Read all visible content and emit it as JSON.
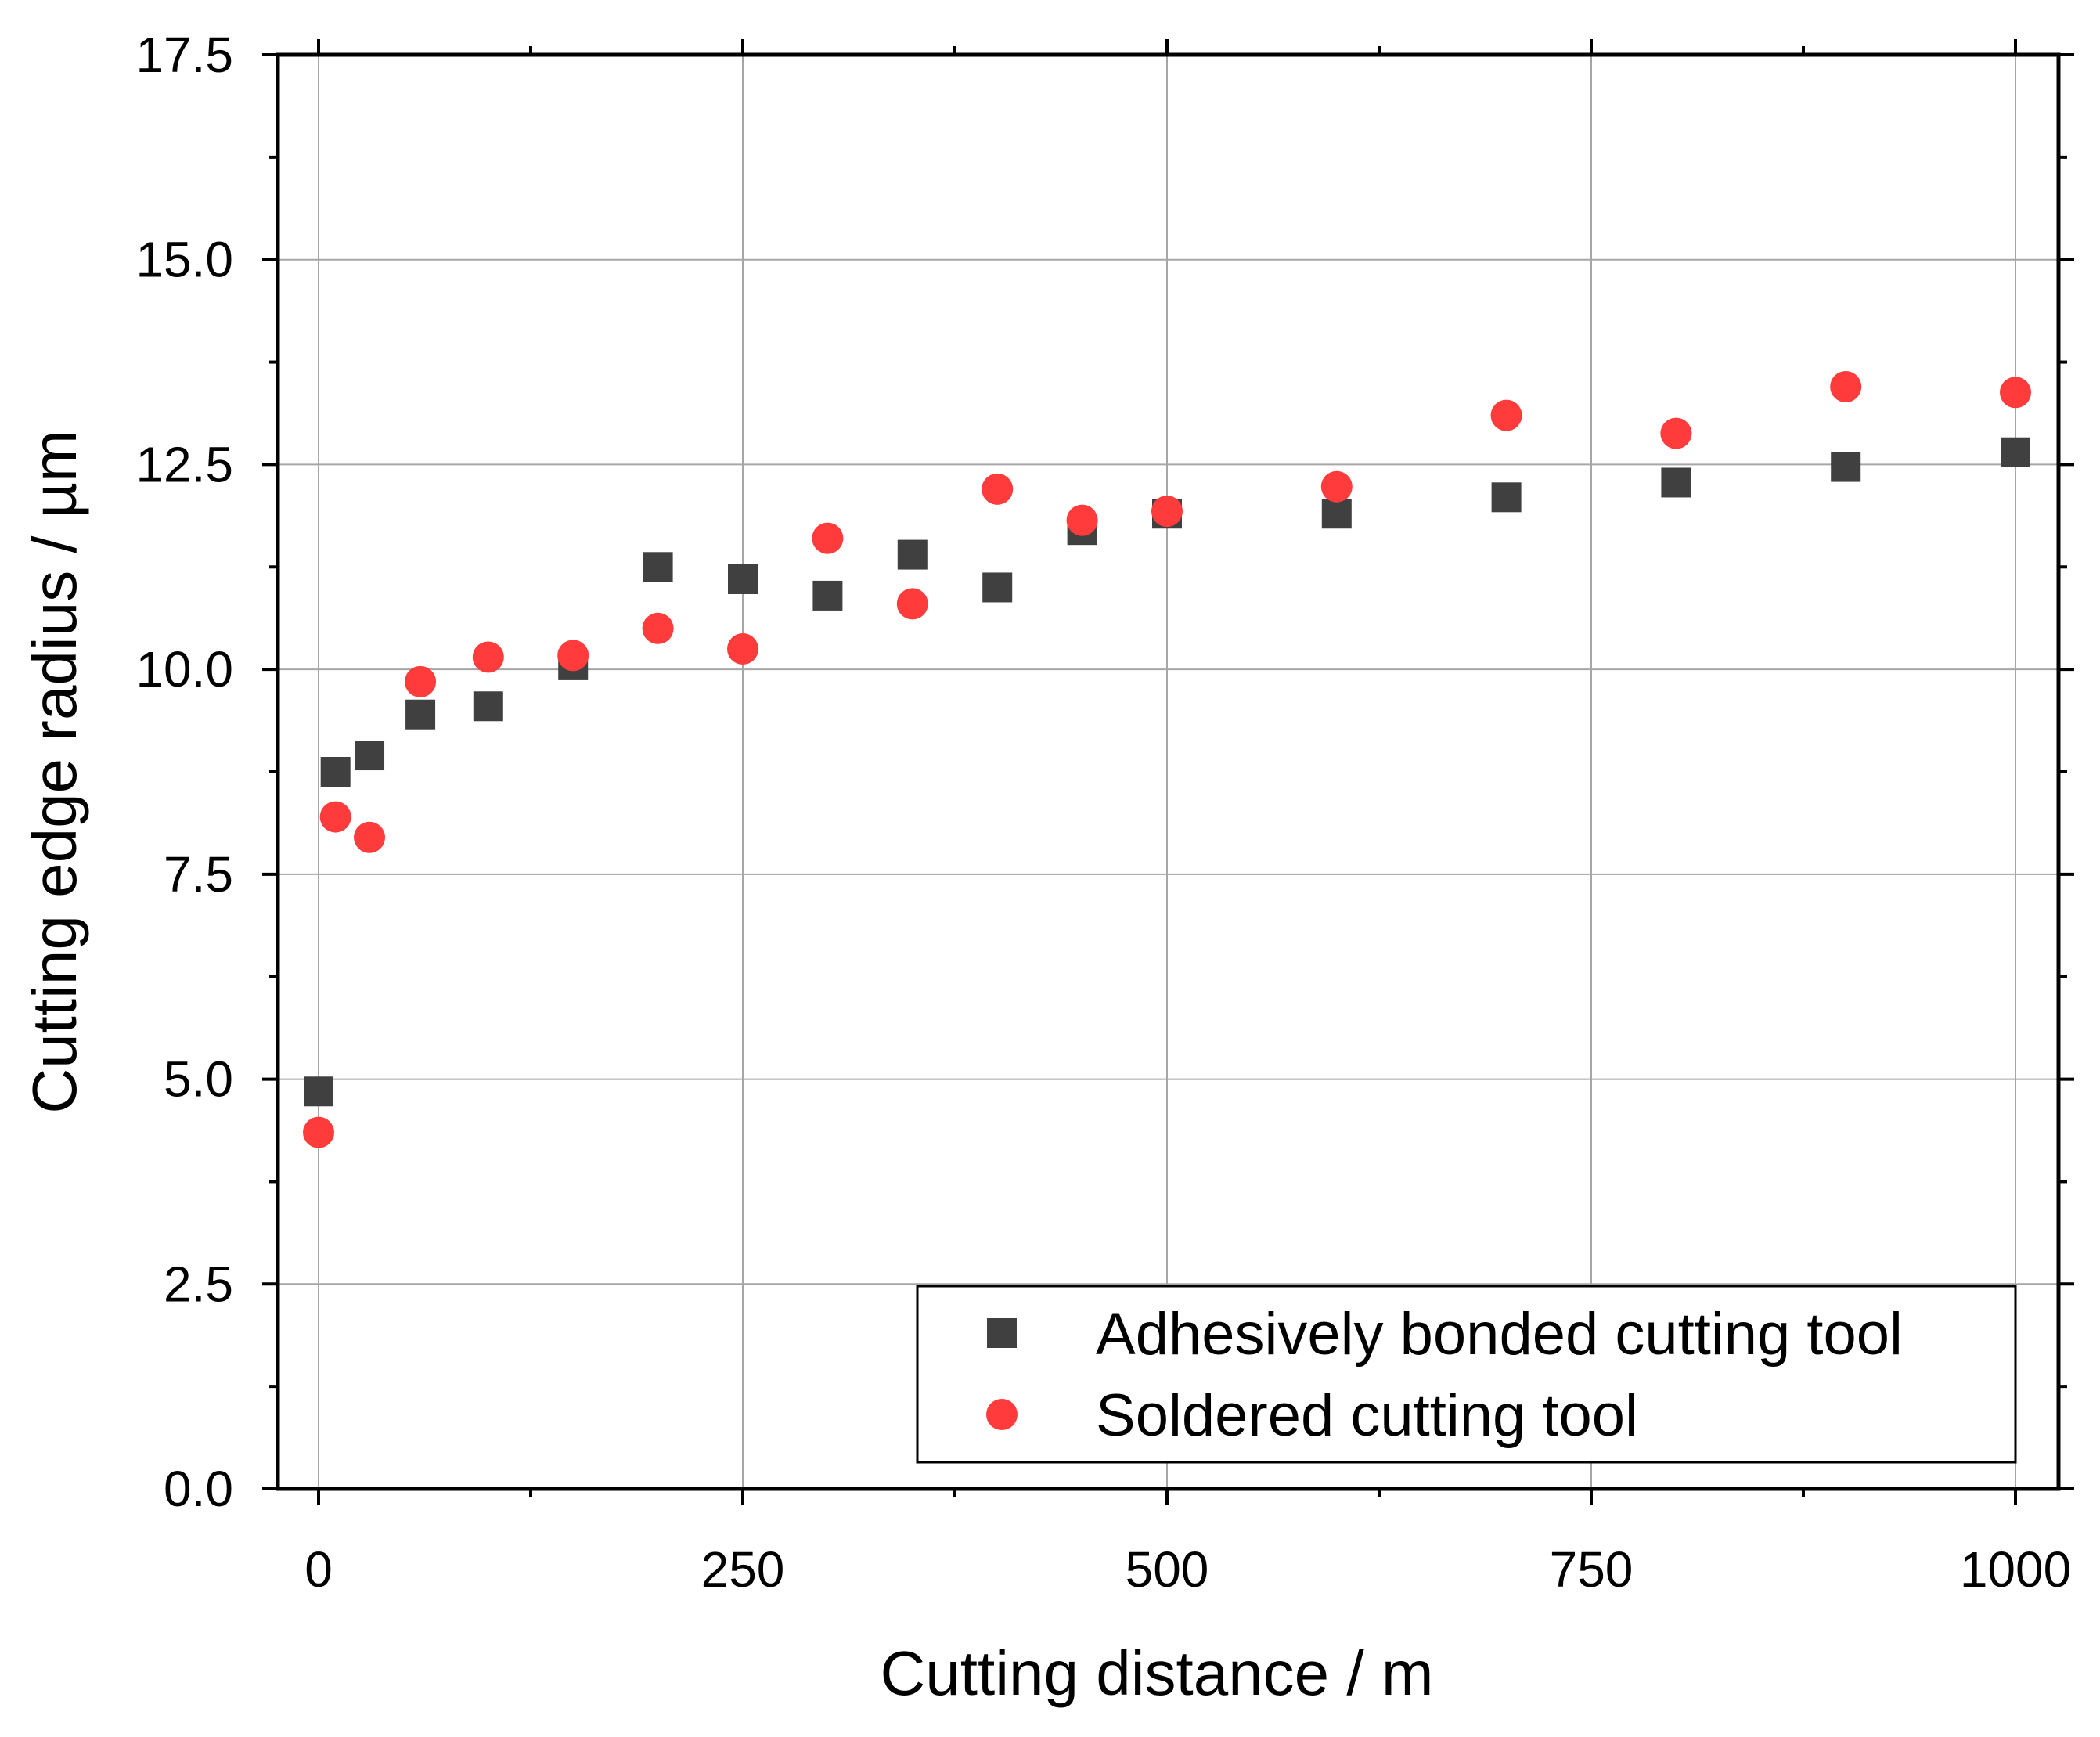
{
  "chart_data": {
    "type": "scatter",
    "title": "",
    "xlabel": "Cutting distance / m",
    "ylabel": "Cutting edge radius / µm",
    "xlim": [
      -50,
      1050
    ],
    "ylim": [
      0,
      17.5
    ],
    "x_ticks": [
      0,
      250,
      500,
      750,
      1000
    ],
    "x_tick_labels": [
      "0",
      "250",
      "500",
      "750",
      "1000"
    ],
    "x_minor_ticks": [
      125,
      375,
      625,
      875
    ],
    "y_ticks": [
      0,
      2.5,
      5,
      7.5,
      10,
      12.5,
      15,
      17.5
    ],
    "y_tick_labels": [
      "0.0",
      "2.5",
      "5.0",
      "7.5",
      "10.0",
      "12.5",
      "15.0",
      "17.5"
    ],
    "y_minor_ticks": [
      1.25,
      3.75,
      6.25,
      8.75,
      11.25,
      13.75,
      16.25
    ],
    "grid": true,
    "legend_position": "bottom-right",
    "series": [
      {
        "name": "Adhesively bonded cutting tool",
        "marker": "square",
        "color": "#404040",
        "x": [
          0,
          10,
          30,
          60,
          100,
          150,
          200,
          250,
          300,
          350,
          400,
          450,
          500,
          600,
          700,
          800,
          900,
          1000
        ],
        "y": [
          4.85,
          8.75,
          8.95,
          9.45,
          9.55,
          10.05,
          11.25,
          11.1,
          10.9,
          11.4,
          11.0,
          11.7,
          11.9,
          11.9,
          12.1,
          12.28,
          12.47,
          12.65
        ]
      },
      {
        "name": "Soldered cutting tool",
        "marker": "circle",
        "color": "#ff3b3b",
        "x": [
          0,
          10,
          30,
          60,
          100,
          150,
          200,
          250,
          300,
          350,
          400,
          450,
          500,
          600,
          700,
          800,
          900,
          1000
        ],
        "y": [
          4.35,
          8.2,
          7.95,
          9.85,
          10.15,
          10.17,
          10.5,
          10.25,
          11.6,
          10.8,
          12.2,
          11.82,
          11.93,
          12.23,
          13.1,
          12.88,
          13.45,
          13.38
        ]
      }
    ]
  }
}
